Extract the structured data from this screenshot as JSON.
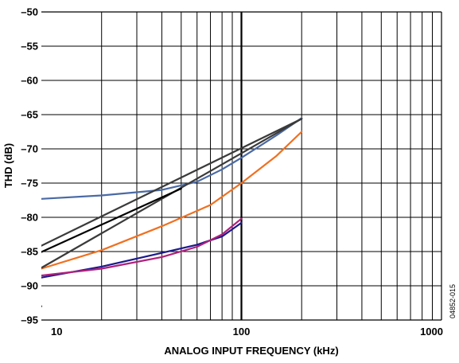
{
  "chart_data": {
    "type": "line",
    "title": "",
    "xlabel": "ANALOG INPUT FREQUENCY (kHz)",
    "ylabel": "THD (dB)",
    "x_scale": "log",
    "xlim": [
      10,
      1000
    ],
    "ylim": [
      -95,
      -50
    ],
    "x_tick_labels": [
      "10",
      "100",
      "1000"
    ],
    "y_tick_labels": [
      "–50",
      "–55",
      "–60",
      "–65",
      "–70",
      "–75",
      "–80",
      "–85",
      "–90",
      "–95"
    ],
    "grid": true,
    "legend": "none",
    "figure_id": "04852-015",
    "series": [
      {
        "color": "#4a6aa5",
        "x": [
          10,
          20,
          40,
          60,
          80,
          100,
          150,
          200
        ],
        "y": [
          -77.3,
          -76.8,
          -76.0,
          -74.8,
          -73.0,
          -71.3,
          -68.0,
          -65.5
        ]
      },
      {
        "color": "#f07020",
        "x": [
          10,
          20,
          40,
          70,
          100,
          150,
          200
        ],
        "y": [
          -87.5,
          -84.8,
          -81.3,
          -78.2,
          -75.0,
          -71.0,
          -67.5
        ]
      },
      {
        "color": "#3a3a3a",
        "x": [
          1.6,
          200
        ],
        "y": [
          -95.5,
          -65.6
        ]
      },
      {
        "color": "#3a3a3a",
        "x": [
          1.6,
          200
        ],
        "y": [
          -100.7,
          -65.6
        ]
      },
      {
        "color": "#000000",
        "x": [
          5.5,
          50
        ],
        "y": [
          -88.5,
          -75.8
        ]
      },
      {
        "color": "#3a3a3a",
        "x": [
          1.8,
          10
        ],
        "y": [
          -101.5,
          -93.0
        ]
      },
      {
        "color": "#1a1a8c",
        "x": [
          10,
          20,
          40,
          60,
          80,
          100
        ],
        "y": [
          -88.8,
          -87.2,
          -85.2,
          -84.0,
          -82.8,
          -80.8
        ]
      },
      {
        "color": "#b0207c",
        "x": [
          10,
          20,
          40,
          60,
          80,
          100
        ],
        "y": [
          -88.5,
          -87.5,
          -85.8,
          -84.3,
          -82.5,
          -80.2
        ]
      }
    ]
  }
}
